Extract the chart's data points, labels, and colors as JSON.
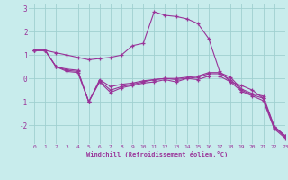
{
  "xlabel": "Windchill (Refroidissement éolien,°C)",
  "background_color": "#c8ecec",
  "grid_color": "#a0d0d0",
  "line_color": "#993399",
  "x": [
    0,
    1,
    2,
    3,
    4,
    5,
    6,
    7,
    8,
    9,
    10,
    11,
    12,
    13,
    14,
    15,
    16,
    17,
    18,
    19,
    20,
    21,
    22,
    23
  ],
  "line1": [
    1.2,
    1.2,
    1.1,
    1.0,
    0.9,
    0.8,
    0.85,
    0.9,
    1.0,
    1.4,
    1.5,
    2.85,
    2.7,
    2.65,
    2.55,
    2.35,
    1.7,
    0.3,
    -0.15,
    -0.3,
    -0.5,
    -0.85,
    -2.05,
    -2.45
  ],
  "line2": [
    1.2,
    1.2,
    0.5,
    0.4,
    0.35,
    -1.0,
    -0.05,
    -0.35,
    -0.25,
    -0.2,
    -0.1,
    -0.05,
    0.0,
    0.0,
    0.05,
    0.1,
    0.25,
    0.25,
    0.05,
    -0.45,
    -0.65,
    -0.75,
    -2.05,
    -2.45
  ],
  "line3": [
    1.2,
    1.2,
    0.5,
    0.35,
    0.3,
    -1.0,
    -0.1,
    -0.5,
    -0.35,
    -0.25,
    -0.15,
    -0.05,
    0.0,
    -0.05,
    0.0,
    0.05,
    0.2,
    0.2,
    -0.05,
    -0.5,
    -0.7,
    -0.85,
    -2.1,
    -2.5
  ],
  "line4": [
    1.2,
    1.2,
    0.5,
    0.3,
    0.25,
    -1.0,
    -0.15,
    -0.6,
    -0.4,
    -0.3,
    -0.2,
    -0.15,
    -0.05,
    -0.15,
    0.0,
    -0.05,
    0.1,
    0.1,
    -0.15,
    -0.55,
    -0.75,
    -0.95,
    -2.15,
    -2.55
  ],
  "ylim": [
    -2.8,
    3.2
  ],
  "xlim": [
    -0.5,
    23
  ],
  "yticks": [
    -2,
    -1,
    0,
    1,
    2,
    3
  ],
  "xticks": [
    0,
    1,
    2,
    3,
    4,
    5,
    6,
    7,
    8,
    9,
    10,
    11,
    12,
    13,
    14,
    15,
    16,
    17,
    18,
    19,
    20,
    21,
    22,
    23
  ]
}
